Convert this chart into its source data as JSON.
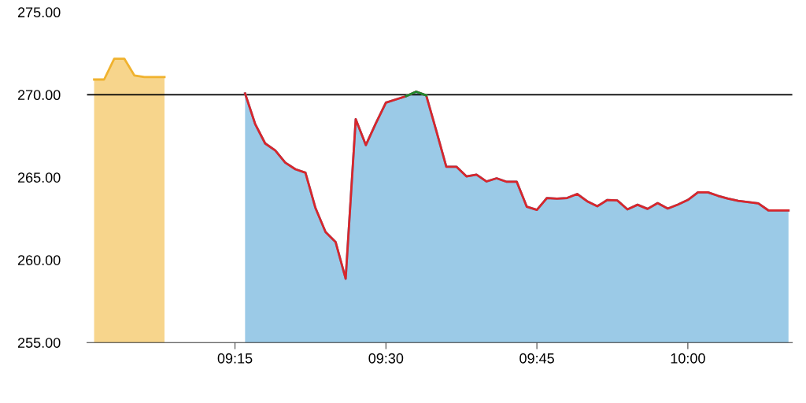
{
  "chart_data": {
    "type": "area",
    "xlim": [
      9.005,
      10.173
    ],
    "ylim": [
      255,
      275
    ],
    "xticks": [
      {
        "value": 9.25,
        "label": "09:15"
      },
      {
        "value": 9.5,
        "label": "09:30"
      },
      {
        "value": 9.75,
        "label": "09:45"
      },
      {
        "value": 10.0,
        "label": "10:00"
      }
    ],
    "yticks": [
      {
        "value": 255,
        "label": "255.00"
      },
      {
        "value": 260,
        "label": "260.00"
      },
      {
        "value": 265,
        "label": "265.00"
      },
      {
        "value": 270,
        "label": "270.00"
      },
      {
        "value": 275,
        "label": "275.00"
      }
    ],
    "grid": false,
    "legend": false,
    "ref_lines": [
      {
        "axis": "y",
        "value": 270,
        "color": "#000000"
      }
    ],
    "series": [
      {
        "color": "#f0b22e",
        "x": [
          9.0167,
          9.0333,
          9.05,
          9.0667,
          9.0833,
          9.1,
          9.1333
        ],
        "values": [
          270.92,
          270.92,
          272.18,
          272.18,
          271.17,
          271.07,
          271.07
        ]
      },
      {
        "color": "#4a9fd4",
        "x": [
          9.2667,
          9.2833,
          9.3,
          9.3167,
          9.3333,
          9.35,
          9.3667,
          9.3833,
          9.4,
          9.4167,
          9.4333,
          9.45,
          9.4667,
          9.4833,
          9.5,
          9.5333,
          9.55,
          9.5667,
          9.5833,
          9.6,
          9.6167,
          9.6333,
          9.65,
          9.6667,
          9.6833,
          9.7,
          9.7167,
          9.7333,
          9.75,
          9.7667,
          9.7833,
          9.8,
          9.8167,
          9.8333,
          9.85,
          9.8667,
          9.8833,
          9.9,
          9.9167,
          9.9333,
          9.95,
          9.9667,
          9.9833,
          10.0,
          10.0167,
          10.0333,
          10.05,
          10.0667,
          10.0833,
          10.1167,
          10.1333,
          10.1667
        ],
        "values": [
          270.08,
          268.24,
          267.05,
          266.63,
          265.89,
          265.49,
          265.28,
          263.14,
          261.69,
          261.08,
          258.86,
          268.52,
          266.95,
          268.27,
          269.52,
          269.91,
          270.18,
          269.96,
          267.83,
          265.64,
          265.64,
          265.06,
          265.16,
          264.75,
          264.94,
          264.73,
          264.73,
          263.22,
          263.03,
          263.75,
          263.71,
          263.75,
          263.99,
          263.55,
          263.25,
          263.63,
          263.6,
          263.06,
          263.34,
          263.09,
          263.44,
          263.11,
          263.35,
          263.63,
          264.09,
          264.09,
          263.88,
          263.71,
          263.58,
          263.42,
          263.0,
          263.0
        ]
      },
      {
        "type": "line",
        "color": "#d9262b",
        "x": [
          9.2667,
          9.2833,
          9.3,
          9.3167,
          9.3333,
          9.35,
          9.3667,
          9.3833,
          9.4,
          9.4167,
          9.4333,
          9.45,
          9.4667,
          9.4833,
          9.5,
          9.5333,
          9.55,
          9.5667,
          9.5833,
          9.6,
          9.6167,
          9.6333,
          9.65,
          9.6667,
          9.6833,
          9.7,
          9.7167,
          9.7333,
          9.75,
          9.7667,
          9.7833,
          9.8,
          9.8167,
          9.8333,
          9.85,
          9.8667,
          9.8833,
          9.9,
          9.9167,
          9.9333,
          9.95,
          9.9667,
          9.9833,
          10.0,
          10.0167,
          10.0333,
          10.05,
          10.0667,
          10.0833,
          10.1167,
          10.1333,
          10.1667
        ],
        "values": [
          270.08,
          268.24,
          267.05,
          266.63,
          265.89,
          265.49,
          265.28,
          263.14,
          261.69,
          261.08,
          258.86,
          268.52,
          266.95,
          268.27,
          269.52,
          269.91,
          270.18,
          269.96,
          267.83,
          265.64,
          265.64,
          265.06,
          265.16,
          264.75,
          264.94,
          264.73,
          264.73,
          263.22,
          263.03,
          263.75,
          263.71,
          263.75,
          263.99,
          263.55,
          263.25,
          263.63,
          263.6,
          263.06,
          263.34,
          263.09,
          263.44,
          263.11,
          263.35,
          263.63,
          264.09,
          264.09,
          263.88,
          263.71,
          263.58,
          263.42,
          263.0,
          263.0
        ]
      },
      {
        "type": "line",
        "color": "#1f8a2e",
        "x": [
          9.5333,
          9.55,
          9.5667
        ],
        "values": [
          269.91,
          270.18,
          269.96
        ]
      }
    ]
  }
}
